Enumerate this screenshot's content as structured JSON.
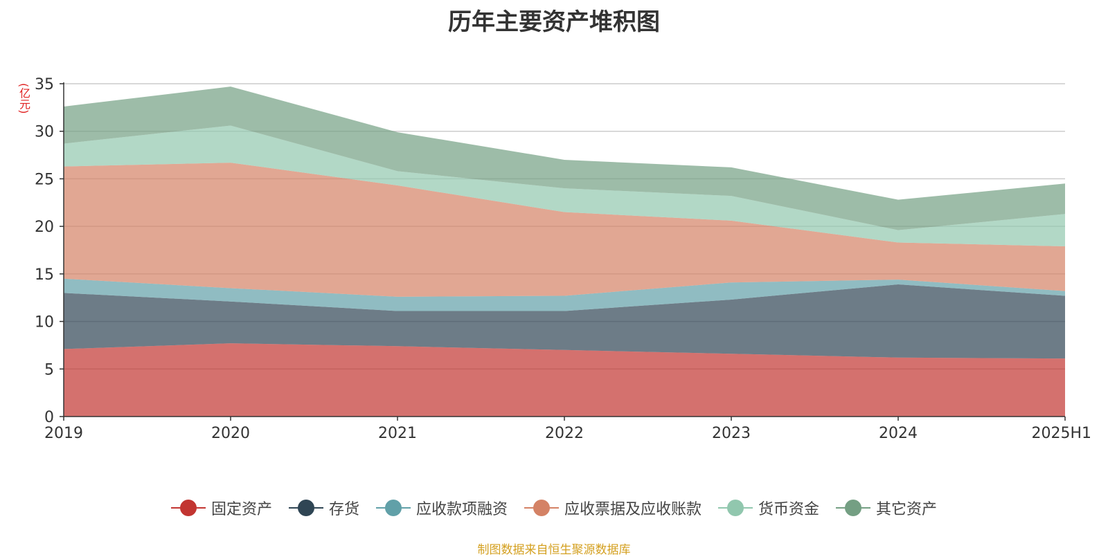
{
  "chart_data": {
    "type": "area",
    "stacked": true,
    "title": "历年主要资产堆积图",
    "y_unit": "(亿元)",
    "x": [
      "2019",
      "2020",
      "2021",
      "2022",
      "2023",
      "2024",
      "2025H1"
    ],
    "ylim": [
      0,
      35
    ],
    "yticks": [
      0,
      5,
      10,
      15,
      20,
      25,
      30,
      35
    ],
    "grid": true,
    "legend_position": "bottom",
    "series": [
      {
        "name": "固定资产",
        "color": "#c23531",
        "values": [
          7.1,
          7.7,
          7.4,
          7.0,
          6.6,
          6.2,
          6.1
        ]
      },
      {
        "name": "存货",
        "color": "#2f4554",
        "values": [
          5.9,
          4.4,
          3.7,
          4.1,
          5.7,
          7.7,
          6.6
        ]
      },
      {
        "name": "应收款项融资",
        "color": "#61a0a8",
        "values": [
          1.5,
          1.4,
          1.5,
          1.6,
          1.8,
          0.5,
          0.5
        ]
      },
      {
        "name": "应收票据及应收账款",
        "color": "#d48265",
        "values": [
          11.8,
          13.2,
          11.7,
          8.8,
          6.5,
          3.9,
          4.7
        ]
      },
      {
        "name": "货币资金",
        "color": "#91c7ae",
        "values": [
          2.4,
          3.9,
          1.5,
          2.5,
          2.6,
          1.3,
          3.4
        ]
      },
      {
        "name": "其它资产",
        "color": "#749f83",
        "values": [
          3.9,
          4.1,
          4.1,
          3.0,
          3.0,
          3.2,
          3.2
        ]
      }
    ]
  },
  "footer": {
    "source": "制图数据来自恒生聚源数据库"
  }
}
